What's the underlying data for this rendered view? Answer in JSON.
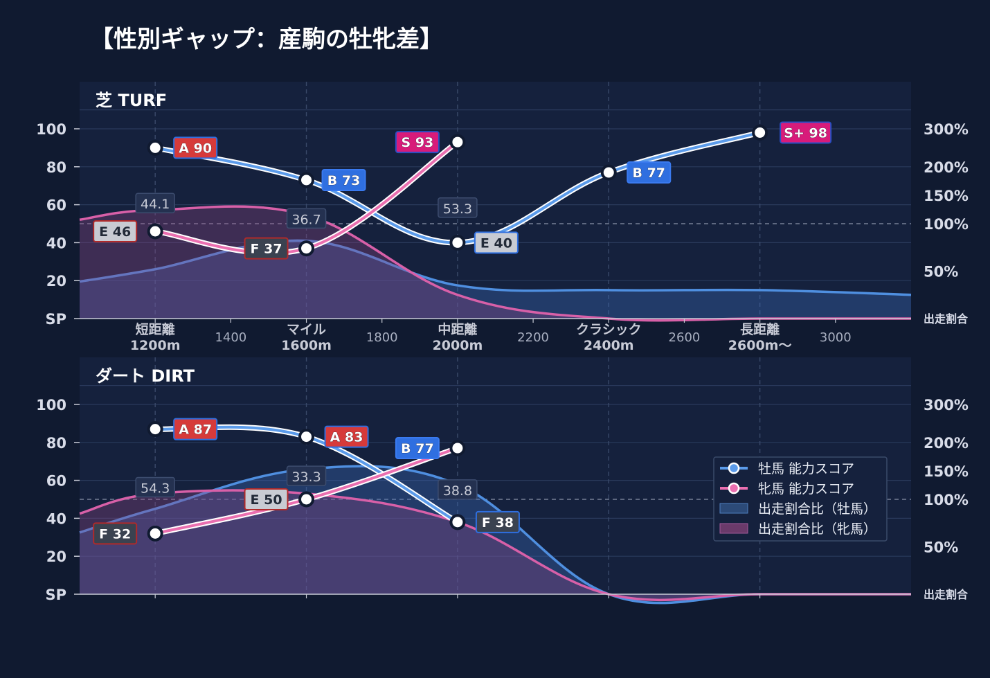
{
  "title": "【性別ギャップ：産駒の牡牝差】",
  "y_left_ticks": [
    "100",
    "80",
    "60",
    "40",
    "20",
    "SP"
  ],
  "y_right_ticks": [
    "300%",
    "200%",
    "150%",
    "100%",
    "50%",
    "出走割合"
  ],
  "x_tick_labels": [
    {
      "name": "short",
      "line1": "短距離",
      "line2": "1200m"
    },
    {
      "name": "1400",
      "line1": "1400",
      "line2": ""
    },
    {
      "name": "mile",
      "line1": "マイル",
      "line2": "1600m"
    },
    {
      "name": "1800",
      "line1": "1800",
      "line2": ""
    },
    {
      "name": "middle",
      "line1": "中距離",
      "line2": "2000m"
    },
    {
      "name": "2200",
      "line1": "2200",
      "line2": ""
    },
    {
      "name": "classic",
      "line1": "クラシック",
      "line2": "2400m"
    },
    {
      "name": "2600",
      "line1": "2600",
      "line2": ""
    },
    {
      "name": "long",
      "line1": "長距離",
      "line2": "2600m〜"
    },
    {
      "name": "3000",
      "line1": "3000",
      "line2": ""
    }
  ],
  "legend": [
    {
      "label": "牡馬 能力スコア",
      "color": "#5b9bea"
    },
    {
      "label": "牝馬 能力スコア",
      "color": "#ea6fb0"
    },
    {
      "label": "出走割合比（牡馬）",
      "color": "#2c4a78"
    },
    {
      "label": "出走割合比（牝馬）",
      "color": "#6a3a6a"
    }
  ],
  "colors": {
    "male": "#5b9bea",
    "female": "#ea6fb0",
    "S": "#d81b7a",
    "A": "#d63a3a",
    "B": "#2f6fe0",
    "E": "#c8cbd3",
    "F": "#3a4250"
  },
  "chart_data": [
    {
      "type": "line",
      "title": "芝 TURF",
      "categories": [
        "1200m",
        "1600m",
        "2000m",
        "2400m",
        "2600m〜"
      ],
      "ylim": [
        0,
        110
      ],
      "series": [
        {
          "name": "牡馬 能力スコア",
          "x": [
            1200,
            1600,
            2000,
            2400,
            2800
          ],
          "values": [
            90,
            73,
            40,
            77,
            98
          ],
          "grades": [
            "A",
            "B",
            "E",
            "B",
            "S+"
          ]
        },
        {
          "name": "牝馬 能力スコア",
          "x": [
            1200,
            1600,
            2000
          ],
          "values": [
            46,
            37,
            93
          ],
          "grades": [
            "E",
            "F",
            "S"
          ]
        }
      ],
      "ratio_series": [
        {
          "name": "出走割合比（牡馬）",
          "x": [
            1000,
            1200,
            1600,
            2000,
            2400,
            2800,
            3200
          ],
          "values": [
            0.39,
            0.52,
            0.82,
            0.35,
            0.3,
            0.3,
            0.25
          ]
        },
        {
          "name": "出走割合比（牝馬）",
          "x": [
            1000,
            1200,
            1600,
            2000,
            2400,
            2800,
            3200
          ],
          "values": [
            1.07,
            1.24,
            1.15,
            0.25,
            0.0,
            0.0,
            0.0
          ]
        }
      ],
      "value_labels": [
        {
          "x": 1200,
          "y": 1.35,
          "text": "44.1"
        },
        {
          "x": 1600,
          "y": 1.08,
          "text": "36.7"
        },
        {
          "x": 2000,
          "y": 1.27,
          "text": "53.3"
        }
      ]
    },
    {
      "type": "line",
      "title": "ダート DIRT",
      "categories": [
        "1200m",
        "1600m",
        "2000m",
        "2400m",
        "2600m〜"
      ],
      "ylim": [
        0,
        110
      ],
      "series": [
        {
          "name": "牡馬 能力スコア",
          "x": [
            1200,
            1600,
            2000
          ],
          "values": [
            87,
            83,
            38
          ],
          "grades": [
            "A",
            "A",
            "F"
          ]
        },
        {
          "name": "牝馬 能力スコア",
          "x": [
            1200,
            1600,
            2000
          ],
          "values": [
            32,
            50,
            77
          ],
          "grades": [
            "F",
            "E",
            "B"
          ]
        }
      ],
      "ratio_series": [
        {
          "name": "出走割合比（牡馬）",
          "x": [
            1000,
            1200,
            1600,
            2000,
            2400,
            2800,
            3200
          ],
          "values": [
            0.65,
            0.9,
            1.53,
            1.26,
            0.0,
            0.0,
            0.0
          ]
        },
        {
          "name": "出走割合比（牝馬）",
          "x": [
            1000,
            1200,
            1600,
            2000,
            2400,
            2800,
            3200
          ],
          "values": [
            0.85,
            1.1,
            1.1,
            0.76,
            0.0,
            0.0,
            0.0
          ]
        }
      ],
      "value_labels": [
        {
          "x": 1200,
          "y": 1.2,
          "text": "54.3"
        },
        {
          "x": 1600,
          "y": 1.4,
          "text": "33.3"
        },
        {
          "x": 2000,
          "y": 1.16,
          "text": "38.8"
        }
      ]
    }
  ]
}
